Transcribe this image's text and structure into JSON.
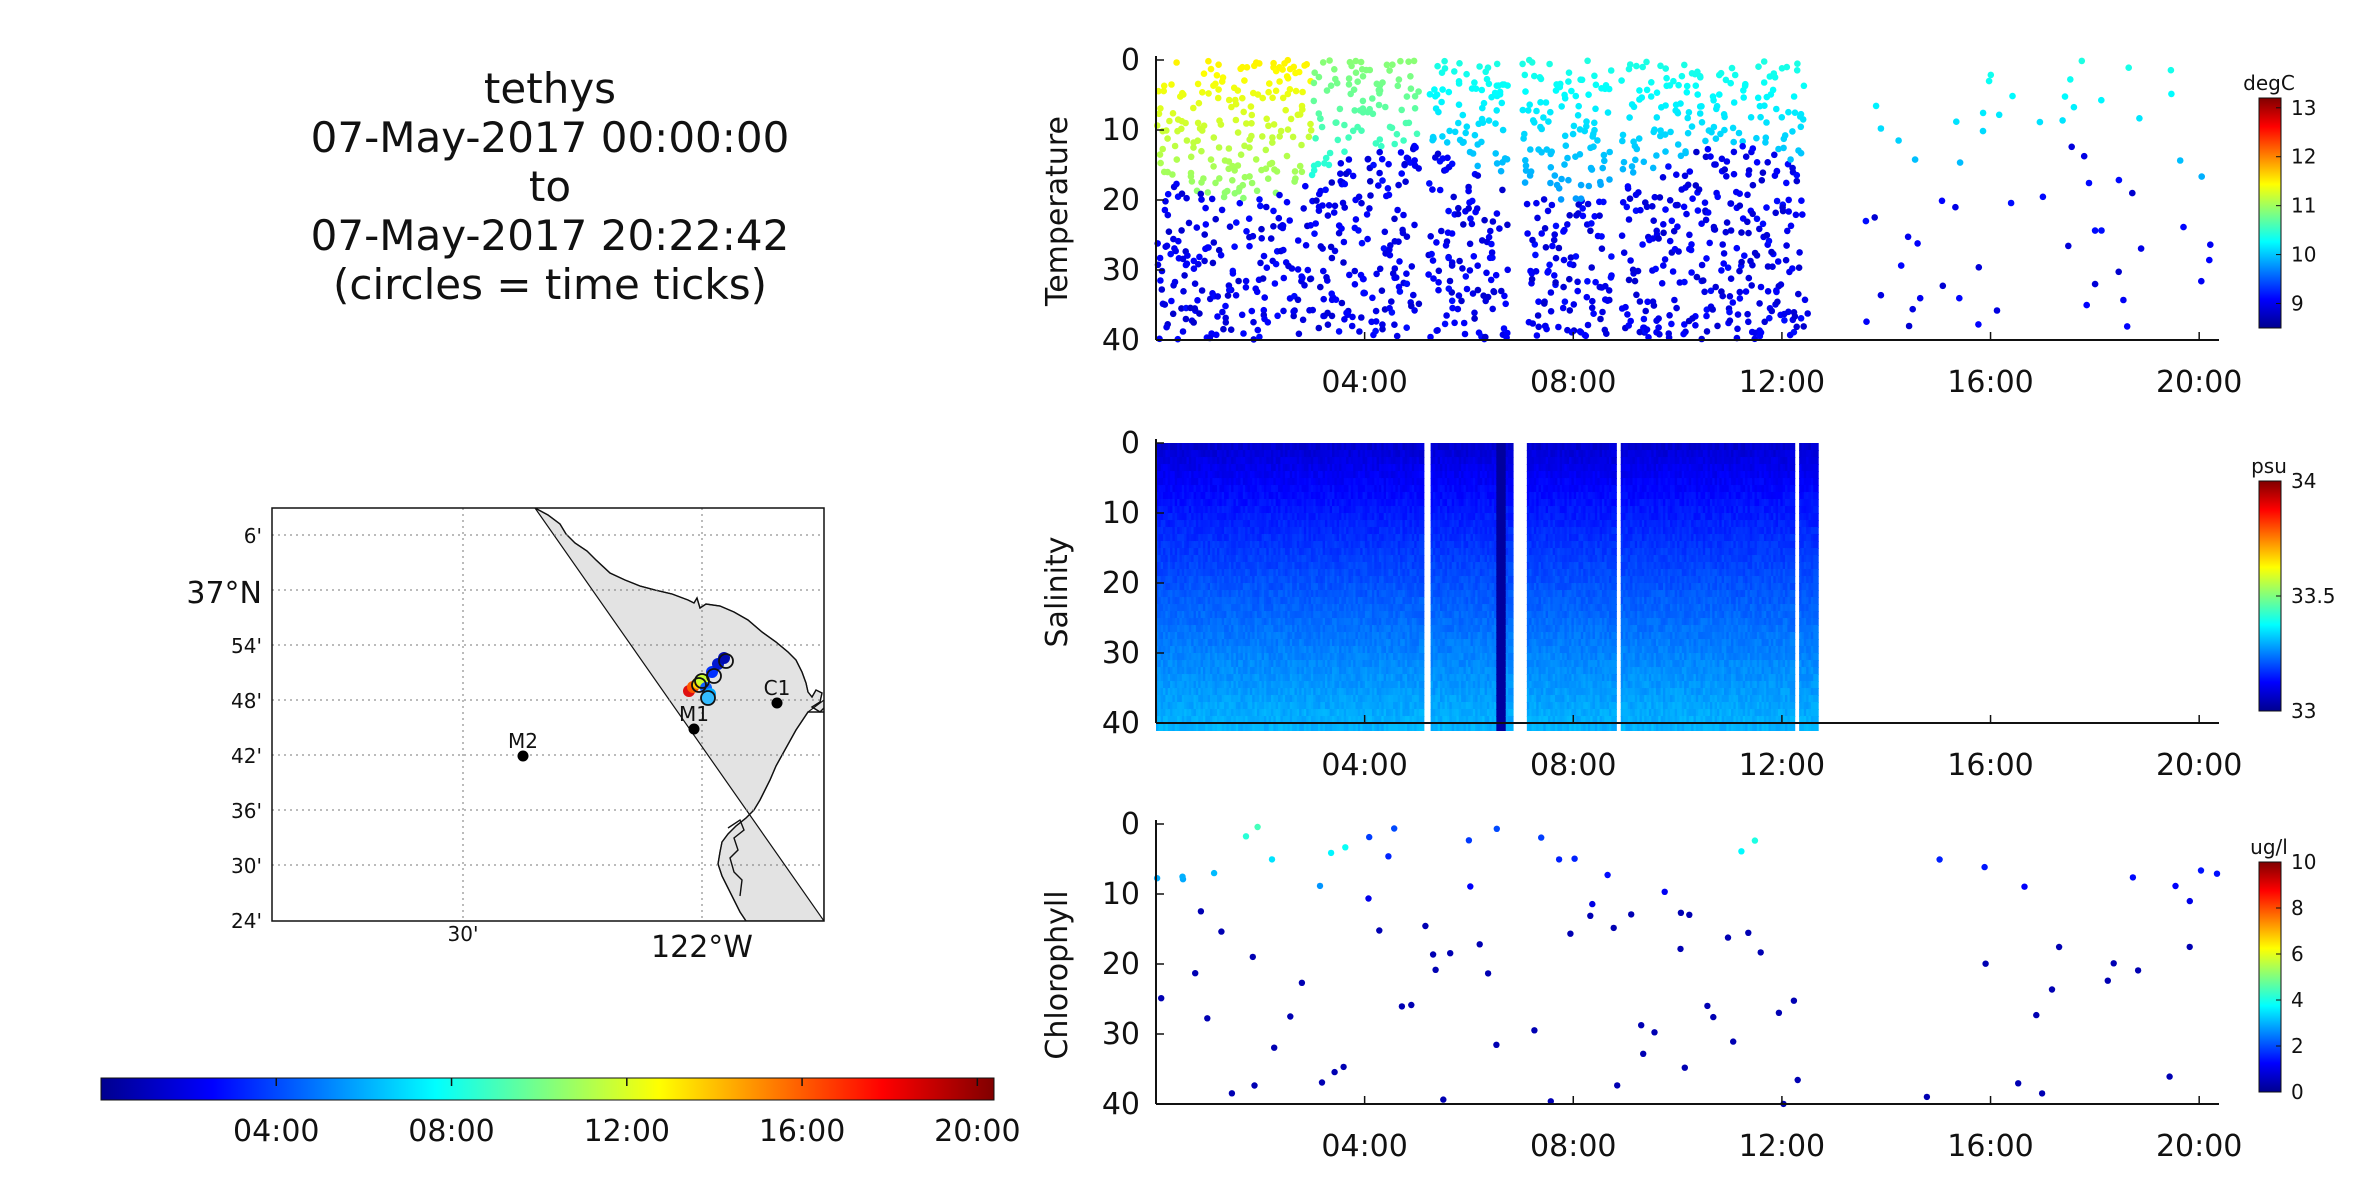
{
  "title_block": {
    "platform": "tethys",
    "start": "07-May-2017 00:00:00",
    "to": "to",
    "end": "07-May-2017 20:22:42",
    "note": "(circles = time ticks)"
  },
  "map": {
    "lat_labels": [
      "6'",
      "37°N",
      "54'",
      "48'",
      "42'",
      "36'",
      "30'",
      "24'"
    ],
    "lon_labels": [
      "30'",
      "122°W"
    ],
    "stations": [
      {
        "name": "C1",
        "lon": -121.847,
        "lat": 36.797
      },
      {
        "name": "M1",
        "lon": -122.03,
        "lat": 36.747
      },
      {
        "name": "M2",
        "lon": -122.39,
        "lat": 36.697
      }
    ],
    "land_color": "#e3e3e3"
  },
  "time_colorbar": {
    "tick_labels": [
      "04:00",
      "08:00",
      "12:00",
      "16:00",
      "20:00"
    ],
    "tick_hours": [
      4,
      8,
      12,
      16,
      20
    ],
    "range_hours": [
      0,
      20.38
    ],
    "colormap": "jet"
  },
  "chart_data": [
    {
      "type": "scatter",
      "ylabel": "Temperature",
      "units": "degC",
      "clim": [
        8.5,
        13.2
      ],
      "colorbar_ticks": [
        9,
        10,
        11,
        12,
        13
      ],
      "ylim": [
        0,
        40
      ],
      "y_reversed": true,
      "y_ticks": [
        0,
        10,
        20,
        30,
        40
      ],
      "xlim_hours": [
        0,
        20.38
      ],
      "x_tick_labels": [
        "04:00",
        "08:00",
        "12:00",
        "16:00",
        "20:00"
      ],
      "x_tick_hours": [
        4,
        8,
        12,
        16,
        20
      ],
      "sampling": "dense yo-yo profiles 0-12:30, sparse 13:30-20:20",
      "surface_value": 10.9,
      "deep_value": 9.0
    },
    {
      "type": "heatmap",
      "ylabel": "Salinity",
      "units": "psu",
      "clim": [
        33,
        34
      ],
      "colorbar_ticks": [
        33,
        33.5,
        34
      ],
      "ylim": [
        0,
        40
      ],
      "y_reversed": true,
      "y_ticks": [
        0,
        10,
        20,
        30,
        40
      ],
      "xlim_hours": [
        0,
        20.38
      ],
      "x_tick_labels": [
        "04:00",
        "08:00",
        "12:00",
        "16:00",
        "20:00"
      ],
      "x_tick_hours": [
        4,
        8,
        12,
        16,
        20
      ],
      "data_end_hours": 12.6,
      "surface_value": 33.08,
      "deep_value": 33.3
    },
    {
      "type": "scatter",
      "ylabel": "Chlorophyll",
      "units": "ug/l",
      "clim": [
        0,
        10
      ],
      "colorbar_ticks": [
        0,
        2,
        4,
        6,
        8,
        10
      ],
      "ylim": [
        0,
        40
      ],
      "y_reversed": true,
      "y_ticks": [
        0,
        10,
        20,
        30,
        40
      ],
      "xlim_hours": [
        0,
        20.38
      ],
      "x_tick_labels": [
        "04:00",
        "08:00",
        "12:00",
        "16:00",
        "20:00"
      ],
      "x_tick_hours": [
        4,
        8,
        12,
        16,
        20
      ],
      "surface_value": 4.5,
      "deep_value": 0.5
    }
  ]
}
